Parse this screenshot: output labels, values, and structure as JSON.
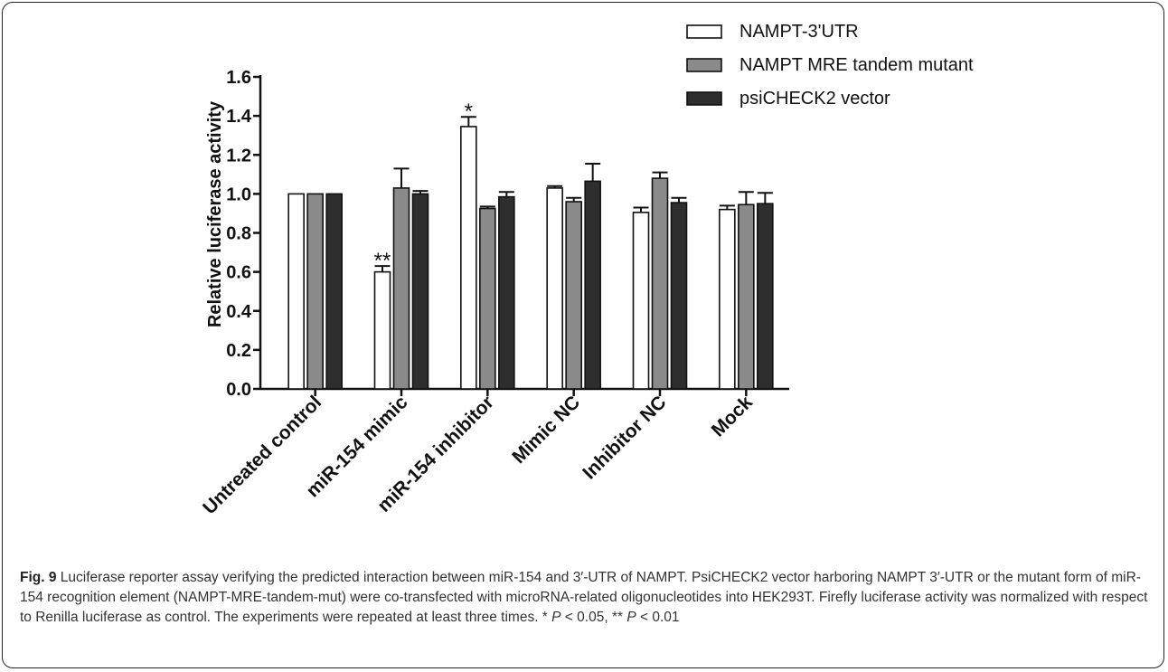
{
  "chart_data": {
    "type": "bar",
    "ylabel": "Relative luciferase activity",
    "xlabel": "",
    "ylim": [
      0,
      1.6
    ],
    "yticks": [
      "0.0",
      "0.2",
      "0.4",
      "0.6",
      "0.8",
      "1.0",
      "1.2",
      "1.4",
      "1.6"
    ],
    "categories": [
      "Untreated control",
      "miR-154 mimic",
      "miR-154 inhibitor",
      "Mimic NC",
      "Inhibitor NC",
      "Mock"
    ],
    "legend_position": "top-right",
    "series": [
      {
        "name": "NAMPT-3'UTR",
        "color": "#ffffff",
        "values": [
          1.0,
          0.6,
          1.345,
          1.03,
          0.905,
          0.92
        ],
        "errors": [
          0.0,
          0.03,
          0.05,
          0.01,
          0.025,
          0.02
        ]
      },
      {
        "name": "NAMPT MRE tandem mutant",
        "color": "#8a8a8a",
        "values": [
          1.0,
          1.03,
          0.925,
          0.96,
          1.08,
          0.945
        ],
        "errors": [
          0.0,
          0.1,
          0.01,
          0.02,
          0.03,
          0.065
        ]
      },
      {
        "name": "psiCHECK2 vector",
        "color": "#2e2e2e",
        "values": [
          1.0,
          1.0,
          0.985,
          1.065,
          0.955,
          0.95
        ],
        "errors": [
          0.0,
          0.015,
          0.025,
          0.09,
          0.025,
          0.055
        ]
      }
    ],
    "annotations": [
      {
        "category": "miR-154 mimic",
        "series": 0,
        "text": "**"
      },
      {
        "category": "miR-154 inhibitor",
        "series": 0,
        "text": "*"
      }
    ]
  },
  "caption": {
    "label": "Fig. 9",
    "text": "Luciferase reporter assay verifying the predicted interaction between miR-154 and 3′-UTR of NAMPT. PsiCHECK2 vector harboring NAMPT 3′-UTR or the mutant form of miR-154 recognition element (NAMPT-MRE-tandem-mut) were co-transfected with microRNA-related oligonucleotides into HEK293T. Firefly luciferase activity was normalized with respect to Renilla luciferase as control. The experiments were repeated at least three times. * ",
    "p1_symbol": "P",
    "p1_value": " < 0.05, ** ",
    "p2_symbol": "P",
    "p2_value": " < 0.01"
  }
}
